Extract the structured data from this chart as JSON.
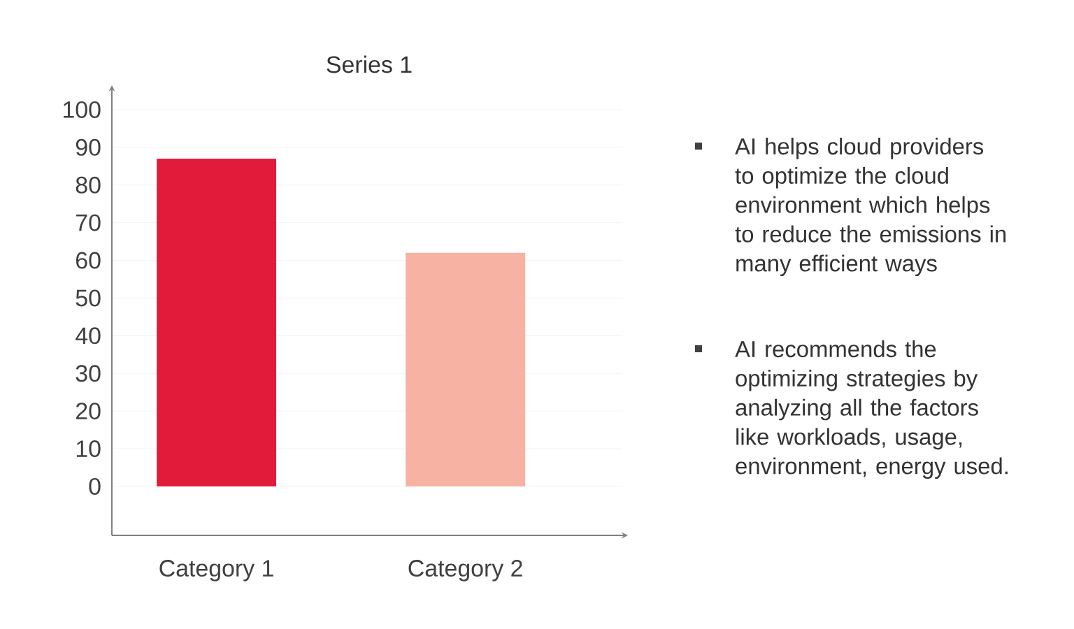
{
  "chart_data": {
    "type": "bar",
    "title": "Series 1",
    "categories": [
      "Category  1",
      "Category  2"
    ],
    "values": [
      87,
      62
    ],
    "colors": [
      "#e31b3b",
      "#f7b2a3"
    ],
    "ylim": [
      -13,
      105
    ],
    "yticks": [
      0,
      10,
      20,
      30,
      40,
      50,
      60,
      70,
      80,
      90,
      100
    ],
    "grid": "y",
    "annotations": [
      "AI helps cloud providers to optimize the cloud environment which helps to reduce the emissions in many efficient ways",
      "AI recommends the optimizing strategies by analyzing all the factors like workloads, usage, environment, energy used."
    ]
  }
}
